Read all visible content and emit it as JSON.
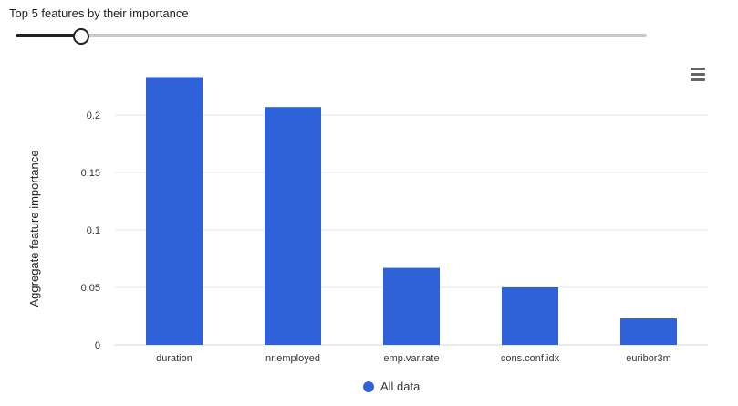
{
  "panel": {
    "title": "Top 5 features by their importance"
  },
  "slider": {
    "value": 5,
    "min": 1,
    "max": 44,
    "fraction": 0.103
  },
  "menu": {
    "icon": "hamburger-menu-icon"
  },
  "colors": {
    "bar": "#2f61d9",
    "grid": "#e6e6e6",
    "axis": "#ccd6eb",
    "text": "#333333"
  },
  "chart_data": {
    "type": "bar",
    "categories": [
      "duration",
      "nr.employed",
      "emp.var.rate",
      "cons.conf.idx",
      "euribor3m"
    ],
    "series": [
      {
        "name": "All data",
        "values": [
          0.233,
          0.207,
          0.067,
          0.05,
          0.023
        ]
      }
    ],
    "ylabel": "Aggregate feature importance",
    "xlabel": "",
    "ylim": [
      0,
      0.25
    ],
    "yticks": [
      0,
      0.05,
      0.1,
      0.15,
      0.2
    ],
    "ytick_labels": [
      "0",
      "0.05",
      "0.1",
      "0.15",
      "0.2"
    ],
    "grid": true,
    "legend_position": "bottom-center"
  }
}
